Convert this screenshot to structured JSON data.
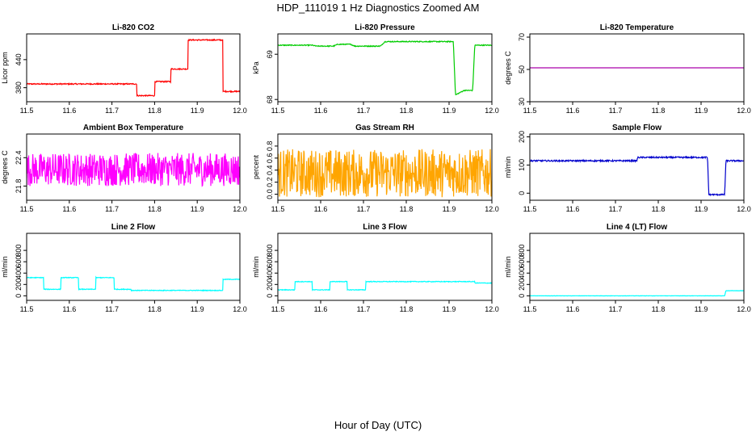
{
  "figure": {
    "title": "HDP_111019  1 Hz Diagnostics Zoomed AM",
    "xlabel": "Hour of Day (UTC)"
  },
  "chart_data": [
    {
      "type": "line",
      "title": "Li-820 CO2",
      "ylabel": "Licor ppm",
      "color": "#ff0000",
      "xlim": [
        11.5,
        12.0
      ],
      "ylim": [
        350,
        495
      ],
      "xticks": [
        11.5,
        11.6,
        11.7,
        11.8,
        11.9,
        12.0
      ],
      "yticks": [
        380,
        440
      ],
      "noise": 1.2,
      "points": [
        [
          11.5,
          388
        ],
        [
          11.758,
          388
        ],
        [
          11.758,
          363
        ],
        [
          11.8,
          363
        ],
        [
          11.8,
          393
        ],
        [
          11.838,
          393
        ],
        [
          11.838,
          420
        ],
        [
          11.878,
          420
        ],
        [
          11.878,
          482
        ],
        [
          11.96,
          482
        ],
        [
          11.96,
          372
        ],
        [
          12.0,
          372
        ]
      ]
    },
    {
      "type": "line",
      "title": "Li-820 Pressure",
      "ylabel": "kPa",
      "color": "#00cc00",
      "xlim": [
        11.5,
        12.0
      ],
      "ylim": [
        67.95,
        69.45
      ],
      "xticks": [
        11.5,
        11.6,
        11.7,
        11.8,
        11.9,
        12.0
      ],
      "yticks": [
        68.0,
        69.0
      ],
      "noise": 0.01,
      "points": [
        [
          11.5,
          69.2
        ],
        [
          11.58,
          69.2
        ],
        [
          11.59,
          69.18
        ],
        [
          11.63,
          69.18
        ],
        [
          11.64,
          69.22
        ],
        [
          11.67,
          69.22
        ],
        [
          11.68,
          69.18
        ],
        [
          11.74,
          69.18
        ],
        [
          11.75,
          69.28
        ],
        [
          11.91,
          69.28
        ],
        [
          11.915,
          68.1
        ],
        [
          11.935,
          68.2
        ],
        [
          11.955,
          68.2
        ],
        [
          11.96,
          69.2
        ],
        [
          12.0,
          69.2
        ]
      ]
    },
    {
      "type": "line",
      "title": "Li-820 Temperature",
      "ylabel": "degrees C",
      "color": "#aa00aa",
      "xlim": [
        11.5,
        12.0
      ],
      "ylim": [
        30,
        72
      ],
      "xticks": [
        11.5,
        11.6,
        11.7,
        11.8,
        11.9,
        12.0
      ],
      "yticks": [
        30,
        50,
        70
      ],
      "noise": 0,
      "points": [
        [
          11.5,
          51
        ],
        [
          12.0,
          51
        ]
      ]
    },
    {
      "type": "line",
      "title": "Ambient Box Temperature",
      "ylabel": "degrees C",
      "color": "#ff00ff",
      "xlim": [
        11.5,
        12.0
      ],
      "ylim": [
        21.5,
        22.9
      ],
      "xticks": [
        11.5,
        11.6,
        11.7,
        11.8,
        11.9,
        12.0
      ],
      "yticks": [
        21.8,
        22.4
      ],
      "noise": 0.35,
      "points": [
        [
          11.5,
          22.15
        ],
        [
          12.0,
          22.15
        ]
      ]
    },
    {
      "type": "line",
      "title": "Gas Stream RH",
      "ylabel": "percent",
      "color": "#ffa500",
      "xlim": [
        11.5,
        12.0
      ],
      "ylim": [
        -0.1,
        1.0
      ],
      "xticks": [
        11.5,
        11.6,
        11.7,
        11.8,
        11.9,
        12.0
      ],
      "yticks": [
        0.0,
        0.2,
        0.4,
        0.6,
        0.8
      ],
      "noise": 0.4,
      "points": [
        [
          11.5,
          0.35
        ],
        [
          12.0,
          0.35
        ]
      ]
    },
    {
      "type": "line",
      "title": "Sample Flow",
      "ylabel": "ml/min",
      "color": "#0000cc",
      "xlim": [
        11.5,
        12.0
      ],
      "ylim": [
        -25,
        210
      ],
      "xticks": [
        11.5,
        11.6,
        11.7,
        11.8,
        11.9,
        12.0
      ],
      "yticks": [
        0,
        100,
        200
      ],
      "noise": 2.5,
      "points": [
        [
          11.5,
          115
        ],
        [
          11.75,
          115
        ],
        [
          11.752,
          127
        ],
        [
          11.915,
          127
        ],
        [
          11.918,
          -5
        ],
        [
          11.955,
          -5
        ],
        [
          11.958,
          115
        ],
        [
          12.0,
          115
        ]
      ]
    },
    {
      "type": "line",
      "title": "Line 2 Flow",
      "ylabel": "ml/min",
      "color": "#00ffff",
      "xlim": [
        11.5,
        12.0
      ],
      "ylim": [
        -80,
        1100
      ],
      "xticks": [
        11.5,
        11.6,
        11.7,
        11.8,
        11.9,
        12.0
      ],
      "yticks": [
        0,
        200,
        400,
        600,
        800
      ],
      "noise": 6,
      "points": [
        [
          11.5,
          320
        ],
        [
          11.54,
          320
        ],
        [
          11.54,
          115
        ],
        [
          11.58,
          115
        ],
        [
          11.58,
          320
        ],
        [
          11.622,
          320
        ],
        [
          11.622,
          115
        ],
        [
          11.662,
          115
        ],
        [
          11.662,
          320
        ],
        [
          11.705,
          320
        ],
        [
          11.705,
          115
        ],
        [
          11.745,
          115
        ],
        [
          11.745,
          95
        ],
        [
          11.96,
          95
        ],
        [
          11.96,
          290
        ],
        [
          12.0,
          290
        ]
      ]
    },
    {
      "type": "line",
      "title": "Line 3 Flow",
      "ylabel": "ml/min",
      "color": "#00ffff",
      "xlim": [
        11.5,
        12.0
      ],
      "ylim": [
        -80,
        1100
      ],
      "xticks": [
        11.5,
        11.6,
        11.7,
        11.8,
        11.9,
        12.0
      ],
      "yticks": [
        0,
        200,
        400,
        600,
        800
      ],
      "noise": 6,
      "points": [
        [
          11.5,
          105
        ],
        [
          11.54,
          105
        ],
        [
          11.54,
          250
        ],
        [
          11.58,
          250
        ],
        [
          11.58,
          105
        ],
        [
          11.622,
          105
        ],
        [
          11.622,
          250
        ],
        [
          11.662,
          250
        ],
        [
          11.662,
          105
        ],
        [
          11.705,
          105
        ],
        [
          11.705,
          250
        ],
        [
          11.96,
          250
        ],
        [
          11.96,
          225
        ],
        [
          12.0,
          225
        ]
      ]
    },
    {
      "type": "line",
      "title": "Line 4 (LT) Flow",
      "ylabel": "ml/min",
      "color": "#00ffff",
      "xlim": [
        11.5,
        12.0
      ],
      "ylim": [
        -80,
        1100
      ],
      "xticks": [
        11.5,
        11.6,
        11.7,
        11.8,
        11.9,
        12.0
      ],
      "yticks": [
        0,
        200,
        400,
        600,
        800
      ],
      "noise": 2,
      "points": [
        [
          11.5,
          0
        ],
        [
          11.955,
          0
        ],
        [
          11.958,
          90
        ],
        [
          12.0,
          90
        ]
      ]
    }
  ]
}
